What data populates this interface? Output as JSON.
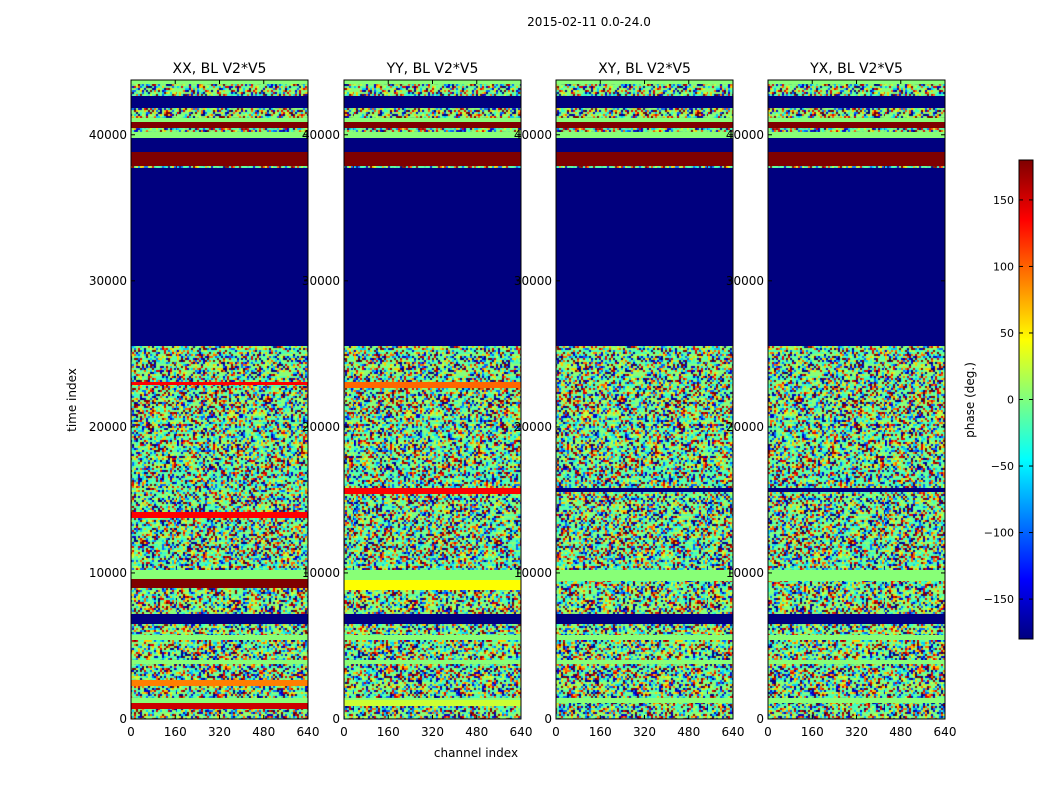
{
  "suptitle": "2015-02-11 0.0-24.0",
  "chart_data": [
    {
      "type": "heatmap",
      "title": "XX, BL V2*V5",
      "xlabel": "channel index",
      "ylabel": "time index",
      "xlim": [
        0,
        640
      ],
      "ylim": [
        0,
        43750
      ],
      "xticks": [
        0,
        160,
        320,
        480,
        640
      ],
      "yticks": [
        0,
        10000,
        20000,
        30000,
        40000
      ]
    },
    {
      "type": "heatmap",
      "title": "YY, BL V2*V5",
      "xlim": [
        0,
        640
      ],
      "ylim": [
        0,
        43750
      ],
      "xticks": [
        0,
        160,
        320,
        480,
        640
      ],
      "yticks": [
        0,
        10000,
        20000,
        30000,
        40000
      ]
    },
    {
      "type": "heatmap",
      "title": "XY, BL V2*V5",
      "xlim": [
        0,
        640
      ],
      "ylim": [
        0,
        43750
      ],
      "xticks": [
        0,
        160,
        320,
        480,
        640
      ],
      "yticks": [
        0,
        10000,
        20000,
        30000,
        40000
      ]
    },
    {
      "type": "heatmap",
      "title": "YX, BL V2*V5",
      "xlim": [
        0,
        640
      ],
      "ylim": [
        0,
        43750
      ],
      "xticks": [
        0,
        160,
        320,
        480,
        640
      ],
      "yticks": [
        0,
        10000,
        20000,
        30000,
        40000
      ]
    }
  ],
  "colorbar": {
    "label": "phase (deg.)",
    "range": [
      -180,
      180
    ],
    "ticks": [
      150,
      100,
      50,
      0,
      -50,
      -100,
      -150
    ],
    "tick_labels": [
      "150",
      "100",
      "50",
      "0",
      "−50",
      "−100",
      "−150"
    ],
    "colormap": [
      "#00007f",
      "#0000ff",
      "#007fff",
      "#00ffff",
      "#7fff7f",
      "#ffff00",
      "#ff7f00",
      "#ff0000",
      "#7f0000"
    ]
  }
}
